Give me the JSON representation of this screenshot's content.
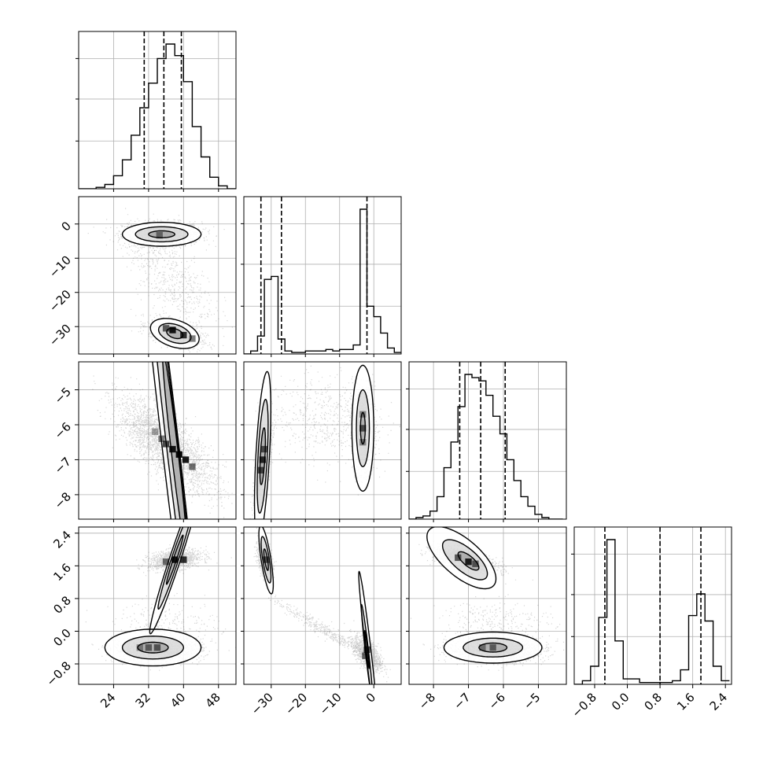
{
  "chart_data": {
    "type": "corner",
    "title": "",
    "grid": true,
    "parameters": [
      {
        "range": [
          16,
          52
        ],
        "ticks": [
          24,
          32,
          40,
          48
        ],
        "tick_labels": [
          "24",
          "32",
          "40",
          "48"
        ],
        "quantiles": [
          31,
          35.5,
          39.5
        ]
      },
      {
        "range": [
          -38,
          8
        ],
        "ticks": [
          -30,
          -20,
          -10,
          0
        ],
        "tick_labels": [
          "−30",
          "−20",
          "−10",
          "0"
        ],
        "quantiles": [
          -33,
          -27,
          -2
        ]
      },
      {
        "range": [
          -8.7,
          -4.2
        ],
        "ticks": [
          -8,
          -7,
          -6,
          -5
        ],
        "tick_labels": [
          "−8",
          "−7",
          "−6",
          "−5"
        ],
        "quantiles": [
          -7.25,
          -6.65,
          -5.95
        ]
      },
      {
        "range": [
          -1.3,
          2.55
        ],
        "ticks": [
          -0.8,
          0.0,
          0.8,
          1.6,
          2.4
        ],
        "tick_labels": [
          "−0.8",
          "0.0",
          "0.8",
          "1.6",
          "2.4"
        ],
        "quantiles": [
          -0.55,
          0.8,
          1.8
        ]
      }
    ],
    "histograms": [
      {
        "edges": [
          16,
          18,
          20,
          22,
          24,
          26,
          28,
          30,
          32,
          34,
          36,
          38,
          40,
          42,
          44,
          46,
          48,
          50,
          52
        ],
        "counts": [
          0,
          0,
          1,
          3,
          9,
          20,
          37,
          56,
          73,
          90,
          100,
          92,
          74,
          43,
          22,
          8,
          2,
          0
        ]
      },
      {
        "edges": [
          -38,
          -36,
          -34,
          -32,
          -30,
          -28,
          -26,
          -24,
          -22,
          -20,
          -18,
          -16,
          -14,
          -12,
          -10,
          -8,
          -6,
          -4,
          -2,
          0,
          2,
          4,
          6,
          8
        ],
        "counts": [
          0,
          2,
          12,
          50,
          52,
          10,
          2,
          1,
          1,
          2,
          2,
          2,
          3,
          2,
          3,
          3,
          6,
          97,
          32,
          25,
          14,
          4,
          1
        ]
      },
      {
        "edges": [
          -8.7,
          -8.5,
          -8.3,
          -8.1,
          -7.9,
          -7.7,
          -7.5,
          -7.3,
          -7.1,
          -6.9,
          -6.7,
          -6.5,
          -6.3,
          -6.1,
          -5.9,
          -5.7,
          -5.5,
          -5.3,
          -5.1,
          -4.9,
          -4.7,
          -4.5,
          -4.3
        ],
        "counts": [
          0,
          1,
          2,
          5,
          14,
          32,
          48,
          70,
          90,
          88,
          86,
          77,
          64,
          53,
          37,
          24,
          14,
          8,
          3,
          1,
          0,
          0
        ]
      },
      {
        "edges": [
          -1.3,
          -1.1,
          -0.9,
          -0.7,
          -0.5,
          -0.3,
          -0.1,
          0.1,
          0.3,
          0.5,
          0.7,
          0.9,
          1.1,
          1.3,
          1.5,
          1.7,
          1.9,
          2.1,
          2.3,
          2.5
        ],
        "counts": [
          0,
          2,
          10,
          37,
          80,
          24,
          3,
          3,
          1,
          1,
          1,
          1,
          2,
          8,
          38,
          50,
          35,
          10,
          2
        ]
      }
    ],
    "scatter_mixtures": [
      {
        "row": 1,
        "col": 0,
        "components": [
          {
            "mean": [
              35,
              -3
            ],
            "sd": [
              4.5,
              1.8
            ],
            "rho": 0,
            "weight": 0.45
          },
          {
            "mean": [
              38,
              -32
            ],
            "sd": [
              3,
              2
            ],
            "rho": -0.5,
            "weight": 0.35
          },
          {
            "mean": [
              37,
              -16
            ],
            "sd": [
              5,
              7
            ],
            "rho": -0.6,
            "weight": 0.2
          }
        ]
      },
      {
        "row": 2,
        "col": 0,
        "components": [
          {
            "mean": [
              36,
              -6.6
            ],
            "sd": [
              5.5,
              0.65
            ],
            "rho": -0.75,
            "weight": 1
          }
        ]
      },
      {
        "row": 2,
        "col": 1,
        "components": [
          {
            "mean": [
              -32.5,
              -7.2
            ],
            "sd": [
              1.2,
              0.5
            ],
            "rho": 0.75,
            "weight": 0.35
          },
          {
            "mean": [
              -3,
              -6.2
            ],
            "sd": [
              1.6,
              0.6
            ],
            "rho": 0,
            "weight": 0.45
          },
          {
            "mean": [
              -15,
              -5.8
            ],
            "sd": [
              8,
              0.6
            ],
            "rho": 0,
            "weight": 0.2
          }
        ]
      },
      {
        "row": 3,
        "col": 0,
        "components": [
          {
            "mean": [
              38,
              1.75
            ],
            "sd": [
              3,
              0.12
            ],
            "rho": 0.3,
            "weight": 0.45
          },
          {
            "mean": [
              34,
              -0.45
            ],
            "sd": [
              5,
              0.15
            ],
            "rho": 0,
            "weight": 0.45
          },
          {
            "mean": [
              36,
              0.15
            ],
            "sd": [
              6,
              0.3
            ],
            "rho": 0,
            "weight": 0.1
          }
        ]
      },
      {
        "row": 3,
        "col": 1,
        "components": [
          {
            "mean": [
              -32,
              1.75
            ],
            "sd": [
              1,
              0.2
            ],
            "rho": -0.4,
            "weight": 0.4
          },
          {
            "mean": [
              -2,
              -0.55
            ],
            "sd": [
              2,
              0.2
            ],
            "rho": -0.6,
            "weight": 0.45
          },
          {
            "mean": [
              -15,
              0.05
            ],
            "sd": [
              7,
              0.35
            ],
            "rho": -0.97,
            "weight": 0.15
          }
        ]
      },
      {
        "row": 3,
        "col": 2,
        "components": [
          {
            "mean": [
              -7.1,
              1.75
            ],
            "sd": [
              0.45,
              0.15
            ],
            "rho": -0.6,
            "weight": 0.45
          },
          {
            "mean": [
              -6.2,
              -0.45
            ],
            "sd": [
              0.7,
              0.15
            ],
            "rho": 0,
            "weight": 0.45
          },
          {
            "mean": [
              -6.2,
              0.25
            ],
            "sd": [
              0.8,
              0.25
            ],
            "rho": 0,
            "weight": 0.1
          }
        ]
      }
    ],
    "contours": [
      {
        "row": 1,
        "col": 0,
        "shapes": [
          {
            "center": [
              35,
              -3
            ],
            "radii": [
              9,
              3.5
            ],
            "rot": 0
          },
          {
            "center": [
              35,
              -3
            ],
            "radii": [
              6,
              2.2
            ],
            "rot": 0
          },
          {
            "center": [
              35,
              -3
            ],
            "radii": [
              3,
              1
            ],
            "rot": 0
          },
          {
            "center": [
              38,
              -32
            ],
            "radii": [
              6,
              3.8
            ],
            "rot": -0.5
          },
          {
            "center": [
              38,
              -32
            ],
            "radii": [
              4,
              2.5
            ],
            "rot": -0.5
          },
          {
            "center": [
              38,
              -32
            ],
            "radii": [
              2,
              1.3
            ],
            "rot": -0.5
          }
        ]
      },
      {
        "row": 2,
        "col": 0,
        "shapes": [
          {
            "center": [
              37,
              -6.6
            ],
            "radii": [
              11,
              1.4
            ],
            "rot": -0.8
          },
          {
            "center": [
              37.5,
              -6.7
            ],
            "radii": [
              7.5,
              0.95
            ],
            "rot": -0.8
          },
          {
            "center": [
              38,
              -6.8
            ],
            "radii": [
              4,
              0.55
            ],
            "rot": -0.8
          }
        ]
      },
      {
        "row": 2,
        "col": 1,
        "shapes": [
          {
            "center": [
              -32.5,
              -6.9
            ],
            "radii": [
              3,
              1.6
            ],
            "rot": 0.8
          },
          {
            "center": [
              -32.5,
              -6.9
            ],
            "radii": [
              2,
              1.1
            ],
            "rot": 0.8
          },
          {
            "center": [
              -32.5,
              -6.9
            ],
            "radii": [
              1,
              0.55
            ],
            "rot": 0.8
          },
          {
            "center": [
              -3.2,
              -6.1
            ],
            "radii": [
              3.2,
              1.8
            ],
            "rot": 0
          },
          {
            "center": [
              -3.2,
              -6.1
            ],
            "radii": [
              1.9,
              1.1
            ],
            "rot": 0
          },
          {
            "center": [
              -3.2,
              -6.1
            ],
            "radii": [
              0.7,
              0.45
            ],
            "rot": 0
          }
        ]
      },
      {
        "row": 3,
        "col": 0,
        "shapes": [
          {
            "center": [
              38,
              1.75
            ],
            "radii": [
              6,
              0.4
            ],
            "rot": 0.3
          },
          {
            "center": [
              38,
              1.75
            ],
            "radii": [
              4,
              0.26
            ],
            "rot": 0.3
          },
          {
            "center": [
              38,
              1.75
            ],
            "radii": [
              2,
              0.12
            ],
            "rot": 0.3
          },
          {
            "center": [
              33,
              -0.4
            ],
            "radii": [
              11,
              0.45
            ],
            "rot": 0
          },
          {
            "center": [
              33,
              -0.4
            ],
            "radii": [
              7,
              0.28
            ],
            "rot": 0
          },
          {
            "center": [
              33,
              -0.4
            ],
            "radii": [
              3.5,
              0.13
            ],
            "rot": 0
          }
        ]
      },
      {
        "row": 3,
        "col": 1,
        "shapes": [
          {
            "center": [
              -31.5,
              1.75
            ],
            "radii": [
              2.2,
              0.55
            ],
            "rot": -0.3
          },
          {
            "center": [
              -31.5,
              1.75
            ],
            "radii": [
              1.5,
              0.37
            ],
            "rot": -0.3
          },
          {
            "center": [
              -31.5,
              1.75
            ],
            "radii": [
              0.7,
              0.17
            ],
            "rot": -0.3
          },
          {
            "center": [
              -1.5,
              -0.55
            ],
            "radii": [
              3.5,
              0.45
            ],
            "rot": -0.6
          },
          {
            "center": [
              -2,
              -0.5
            ],
            "radii": [
              2,
              0.28
            ],
            "rot": -0.6
          },
          {
            "center": [
              -2,
              -0.45
            ],
            "radii": [
              0.8,
              0.12
            ],
            "rot": -0.6
          }
        ]
      },
      {
        "row": 3,
        "col": 2,
        "shapes": [
          {
            "center": [
              -7.2,
              1.8
            ],
            "radii": [
              1.15,
              0.48
            ],
            "rot": -0.6
          },
          {
            "center": [
              -7.1,
              1.75
            ],
            "radii": [
              0.75,
              0.3
            ],
            "rot": -0.6
          },
          {
            "center": [
              -7.0,
              1.72
            ],
            "radii": [
              0.35,
              0.13
            ],
            "rot": -0.6
          },
          {
            "center": [
              -6.3,
              -0.4
            ],
            "radii": [
              1.4,
              0.38
            ],
            "rot": 0
          },
          {
            "center": [
              -6.3,
              -0.4
            ],
            "radii": [
              0.85,
              0.23
            ],
            "rot": 0
          },
          {
            "center": [
              -6.3,
              -0.4
            ],
            "radii": [
              0.4,
              0.11
            ],
            "rot": 0
          }
        ]
      }
    ],
    "dense_cells": [
      {
        "row": 1,
        "col": 0,
        "cells": [
          [
            34.5,
            -3.3,
            0.45
          ],
          [
            37.5,
            -31,
            0.9
          ],
          [
            40,
            -32.5,
            0.8
          ],
          [
            36,
            -30.5,
            0.6
          ],
          [
            42,
            -33.5,
            0.5
          ]
        ]
      },
      {
        "row": 2,
        "col": 0,
        "cells": [
          [
            36,
            -6.55,
            0.7
          ],
          [
            37.5,
            -6.7,
            0.9
          ],
          [
            39,
            -6.85,
            0.95
          ],
          [
            40.5,
            -7.0,
            0.9
          ],
          [
            35,
            -6.4,
            0.5
          ],
          [
            42,
            -7.2,
            0.55
          ],
          [
            33.5,
            -6.2,
            0.35
          ]
        ]
      },
      {
        "row": 2,
        "col": 1,
        "cells": [
          [
            -32.5,
            -7.0,
            0.8
          ],
          [
            -33,
            -7.3,
            0.65
          ],
          [
            -32,
            -6.7,
            0.6
          ],
          [
            -3.2,
            -6.1,
            0.6
          ],
          [
            -3.2,
            -6.5,
            0.4
          ],
          [
            -3.2,
            -5.7,
            0.4
          ]
        ]
      },
      {
        "row": 3,
        "col": 0,
        "cells": [
          [
            38,
            1.75,
            0.9
          ],
          [
            40,
            1.75,
            0.8
          ],
          [
            36,
            1.7,
            0.55
          ],
          [
            32,
            -0.4,
            0.5
          ],
          [
            34,
            -0.4,
            0.55
          ],
          [
            30,
            -0.4,
            0.35
          ]
        ]
      },
      {
        "row": 3,
        "col": 1,
        "cells": [
          [
            -31.5,
            1.75,
            0.6
          ],
          [
            -2,
            -0.45,
            0.7
          ],
          [
            -2.5,
            -0.6,
            0.55
          ]
        ]
      },
      {
        "row": 3,
        "col": 2,
        "cells": [
          [
            -7.0,
            1.7,
            0.85
          ],
          [
            -7.3,
            1.8,
            0.6
          ],
          [
            -6.8,
            1.65,
            0.55
          ],
          [
            -6.3,
            -0.4,
            0.5
          ],
          [
            -6.6,
            -0.4,
            0.4
          ]
        ]
      }
    ]
  },
  "style": {
    "line": "#000000",
    "grid": "#b0b0b0",
    "background": "#ffffff"
  }
}
